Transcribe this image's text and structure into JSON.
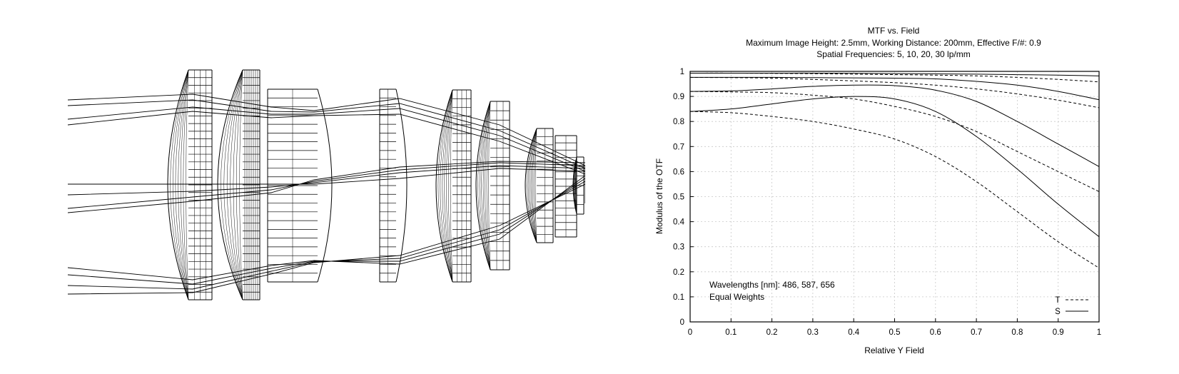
{
  "chart_data": {
    "type": "line",
    "title": "MTF vs. Field",
    "subtitle": [
      "Maximum Image Height: 2.5mm, Working Distance: 200mm, Effective F/#: 0.9",
      "Spatial Frequencies: 5, 10, 20, 30 lp/mm"
    ],
    "xlabel": "Relative Y Field",
    "ylabel": "Modulus of the OTF",
    "xlim": [
      0,
      1
    ],
    "ylim": [
      0,
      1
    ],
    "xticks": [
      "0",
      "0.1",
      "0.2",
      "0.3",
      "0.4",
      "0.5",
      "0.6",
      "0.7",
      "0.8",
      "0.9",
      "1"
    ],
    "yticks": [
      "0",
      "0.1",
      "0.2",
      "0.3",
      "0.4",
      "0.5",
      "0.6",
      "0.7",
      "0.8",
      "0.9",
      "1"
    ],
    "grid": true,
    "annotations": [
      "Wavelengths [nm]: 486, 587, 656",
      "Equal Weights"
    ],
    "legend": {
      "placement": "bottom-right",
      "entries": [
        {
          "label": "T",
          "style": "dashed"
        },
        {
          "label": "S",
          "style": "solid"
        }
      ]
    },
    "x": [
      0,
      0.1,
      0.2,
      0.3,
      0.4,
      0.5,
      0.6,
      0.7,
      0.8,
      0.9,
      1.0
    ],
    "series": [
      {
        "style": "solid",
        "values": [
          0.993,
          0.993,
          0.993,
          0.993,
          0.992,
          0.991,
          0.99,
          0.989,
          0.987,
          0.985,
          0.982
        ]
      },
      {
        "style": "dashed",
        "values": [
          0.993,
          0.993,
          0.992,
          0.991,
          0.989,
          0.987,
          0.985,
          0.982,
          0.976,
          0.968,
          0.958
        ]
      },
      {
        "style": "solid",
        "values": [
          0.976,
          0.976,
          0.976,
          0.975,
          0.974,
          0.973,
          0.97,
          0.96,
          0.945,
          0.92,
          0.887
        ]
      },
      {
        "style": "dashed",
        "values": [
          0.976,
          0.975,
          0.973,
          0.968,
          0.962,
          0.955,
          0.945,
          0.93,
          0.91,
          0.885,
          0.855
        ]
      },
      {
        "style": "solid",
        "values": [
          0.92,
          0.922,
          0.93,
          0.94,
          0.945,
          0.943,
          0.925,
          0.88,
          0.8,
          0.71,
          0.62
        ]
      },
      {
        "style": "dashed",
        "values": [
          0.92,
          0.918,
          0.915,
          0.905,
          0.89,
          0.86,
          0.82,
          0.76,
          0.68,
          0.6,
          0.52
        ]
      },
      {
        "style": "solid",
        "values": [
          0.84,
          0.85,
          0.87,
          0.89,
          0.9,
          0.89,
          0.84,
          0.74,
          0.61,
          0.47,
          0.34
        ]
      },
      {
        "style": "dashed",
        "values": [
          0.84,
          0.835,
          0.82,
          0.8,
          0.77,
          0.73,
          0.66,
          0.56,
          0.44,
          0.32,
          0.215
        ]
      }
    ]
  }
}
